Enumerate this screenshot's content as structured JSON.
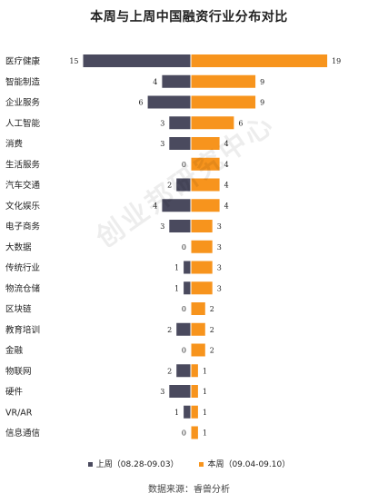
{
  "title": "本周与上周中国融资行业分布对比",
  "watermark": "创业邦研究中心",
  "source": "数据来源：睿兽分析",
  "colors": {
    "last_week": "#4a4a5e",
    "this_week": "#f7941d"
  },
  "chart_data": {
    "type": "bar",
    "orientation": "horizontal-diverging",
    "title": "本周与上周中国融资行业分布对比",
    "categories": [
      "医疗健康",
      "智能制造",
      "企业服务",
      "人工智能",
      "消费",
      "生活服务",
      "汽车交通",
      "文化娱乐",
      "电子商务",
      "大数据",
      "传统行业",
      "物流仓储",
      "区块链",
      "教育培训",
      "金融",
      "物联网",
      "硬件",
      "VR/AR",
      "信息通信"
    ],
    "series": [
      {
        "name": "上周（08.28-09.03）",
        "side": "left",
        "values": [
          15,
          4,
          6,
          3,
          3,
          0,
          2,
          4,
          3,
          0,
          1,
          1,
          0,
          2,
          0,
          2,
          3,
          1,
          0
        ]
      },
      {
        "name": "本周（09.04-09.10）",
        "side": "right",
        "values": [
          19,
          9,
          9,
          6,
          4,
          4,
          4,
          4,
          3,
          3,
          3,
          3,
          2,
          2,
          2,
          1,
          1,
          1,
          1
        ]
      }
    ],
    "legend_position": "bottom",
    "grid": false
  }
}
